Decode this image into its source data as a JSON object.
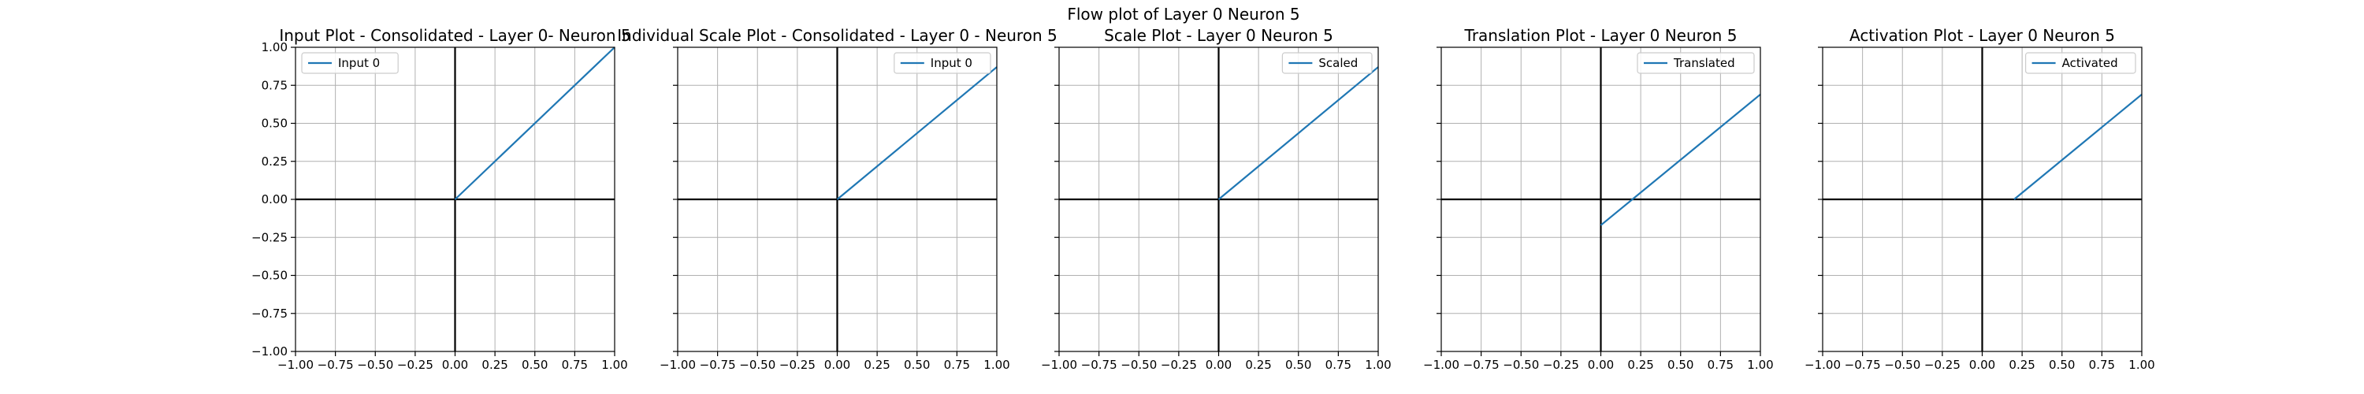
{
  "figure_title": "Flow plot of Layer 0 Neuron 5",
  "colors": {
    "series": "#1f77b4",
    "grid": "#b0b0b0",
    "axis": "#000000"
  },
  "chart_data": [
    {
      "type": "line",
      "title": "Input Plot - Consolidated - Layer 0- Neuron 5",
      "xlim": [
        -1,
        1
      ],
      "ylim": [
        -1,
        1
      ],
      "xticks": [
        "−1.00",
        "−0.75",
        "−0.50",
        "−0.25",
        "0.00",
        "0.25",
        "0.50",
        "0.75",
        "1.00"
      ],
      "yticks": [
        "−1.00",
        "−0.75",
        "−0.50",
        "−0.25",
        "0.00",
        "0.25",
        "0.50",
        "0.75",
        "1.00"
      ],
      "show_yticklabels": true,
      "grid": true,
      "legend_position": "upper-left",
      "series": [
        {
          "name": "Input 0",
          "x": [
            0,
            1
          ],
          "y": [
            0,
            1
          ]
        }
      ]
    },
    {
      "type": "line",
      "title": "Individual Scale Plot - Consolidated - Layer 0 - Neuron 5",
      "xlim": [
        -1,
        1
      ],
      "ylim": [
        -1,
        1
      ],
      "xticks": [
        "−1.00",
        "−0.75",
        "−0.50",
        "−0.25",
        "0.00",
        "0.25",
        "0.50",
        "0.75",
        "1.00"
      ],
      "yticks": [],
      "show_yticklabels": false,
      "grid": true,
      "legend_position": "upper-right",
      "series": [
        {
          "name": "Input 0",
          "x": [
            0,
            1
          ],
          "y": [
            0,
            0.87
          ]
        }
      ]
    },
    {
      "type": "line",
      "title": "Scale Plot - Layer 0 Neuron 5",
      "xlim": [
        -1,
        1
      ],
      "ylim": [
        -1,
        1
      ],
      "xticks": [
        "−1.00",
        "−0.75",
        "−0.50",
        "−0.25",
        "0.00",
        "0.25",
        "0.50",
        "0.75",
        "1.00"
      ],
      "yticks": [],
      "show_yticklabels": false,
      "grid": true,
      "legend_position": "upper-right",
      "series": [
        {
          "name": "Scaled",
          "x": [
            0,
            1
          ],
          "y": [
            0,
            0.87
          ]
        }
      ]
    },
    {
      "type": "line",
      "title": "Translation Plot - Layer 0 Neuron 5",
      "xlim": [
        -1,
        1
      ],
      "ylim": [
        -1,
        1
      ],
      "xticks": [
        "−1.00",
        "−0.75",
        "−0.50",
        "−0.25",
        "0.00",
        "0.25",
        "0.50",
        "0.75",
        "1.00"
      ],
      "yticks": [],
      "show_yticklabels": false,
      "grid": true,
      "legend_position": "upper-right",
      "series": [
        {
          "name": "Translated",
          "x": [
            0,
            1
          ],
          "y": [
            -0.17,
            0.69
          ]
        }
      ]
    },
    {
      "type": "line",
      "title": "Activation Plot - Layer 0 Neuron 5",
      "xlim": [
        -1,
        1
      ],
      "ylim": [
        -1,
        1
      ],
      "xticks": [
        "−1.00",
        "−0.75",
        "−0.50",
        "−0.25",
        "0.00",
        "0.25",
        "0.50",
        "0.75",
        "1.00"
      ],
      "yticks": [],
      "show_yticklabels": false,
      "grid": true,
      "legend_position": "upper-right",
      "series": [
        {
          "name": "Activated",
          "x": [
            0.2,
            1
          ],
          "y": [
            0,
            0.69
          ]
        }
      ]
    }
  ]
}
